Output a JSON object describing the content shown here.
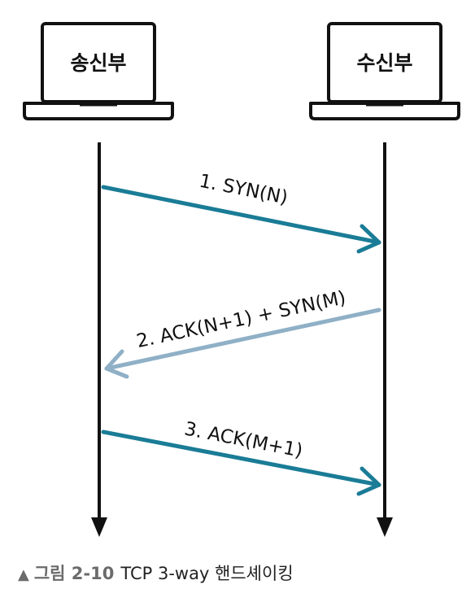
{
  "diagram": {
    "sender": {
      "label": "송신부",
      "icon": "laptop-icon"
    },
    "receiver": {
      "label": "수신부",
      "icon": "laptop-icon"
    },
    "messages": [
      {
        "label": "1. SYN(N)",
        "direction": "sender-to-receiver",
        "color": "#1a7c96"
      },
      {
        "label": "2. ACK(N+1) + SYN(M)",
        "direction": "receiver-to-sender",
        "color": "#8fb0c6"
      },
      {
        "label": "3. ACK(M+1)",
        "direction": "sender-to-receiver",
        "color": "#1a7c96"
      }
    ]
  },
  "caption": {
    "marker": "▲",
    "figure": "그림 2-10",
    "text": "TCP 3-way 핸드셰이킹"
  }
}
